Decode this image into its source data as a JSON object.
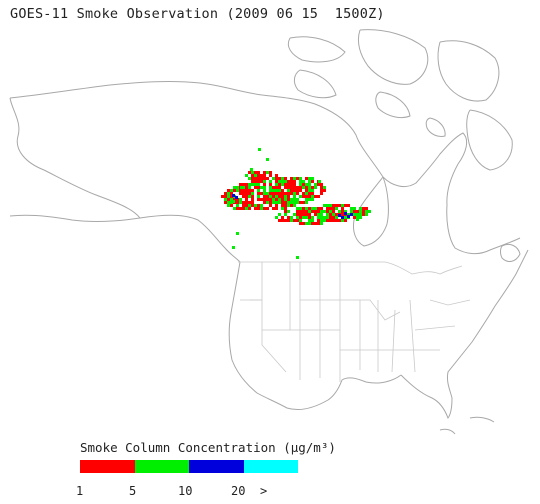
{
  "title": "GOES-11 Smoke Observation (2009 06 15  1500Z)",
  "legend": {
    "title": "Smoke Column Concentration (μg/m³)",
    "bins": [
      {
        "color": "#ff0000"
      },
      {
        "color": "#00ee00"
      },
      {
        "color": "#0000dd"
      },
      {
        "color": "#00ffff"
      }
    ],
    "ticks": [
      "1",
      "5",
      "10",
      "20",
      ">"
    ]
  },
  "map": {
    "region": "North America",
    "outline_color": "#aaaaaa"
  }
}
